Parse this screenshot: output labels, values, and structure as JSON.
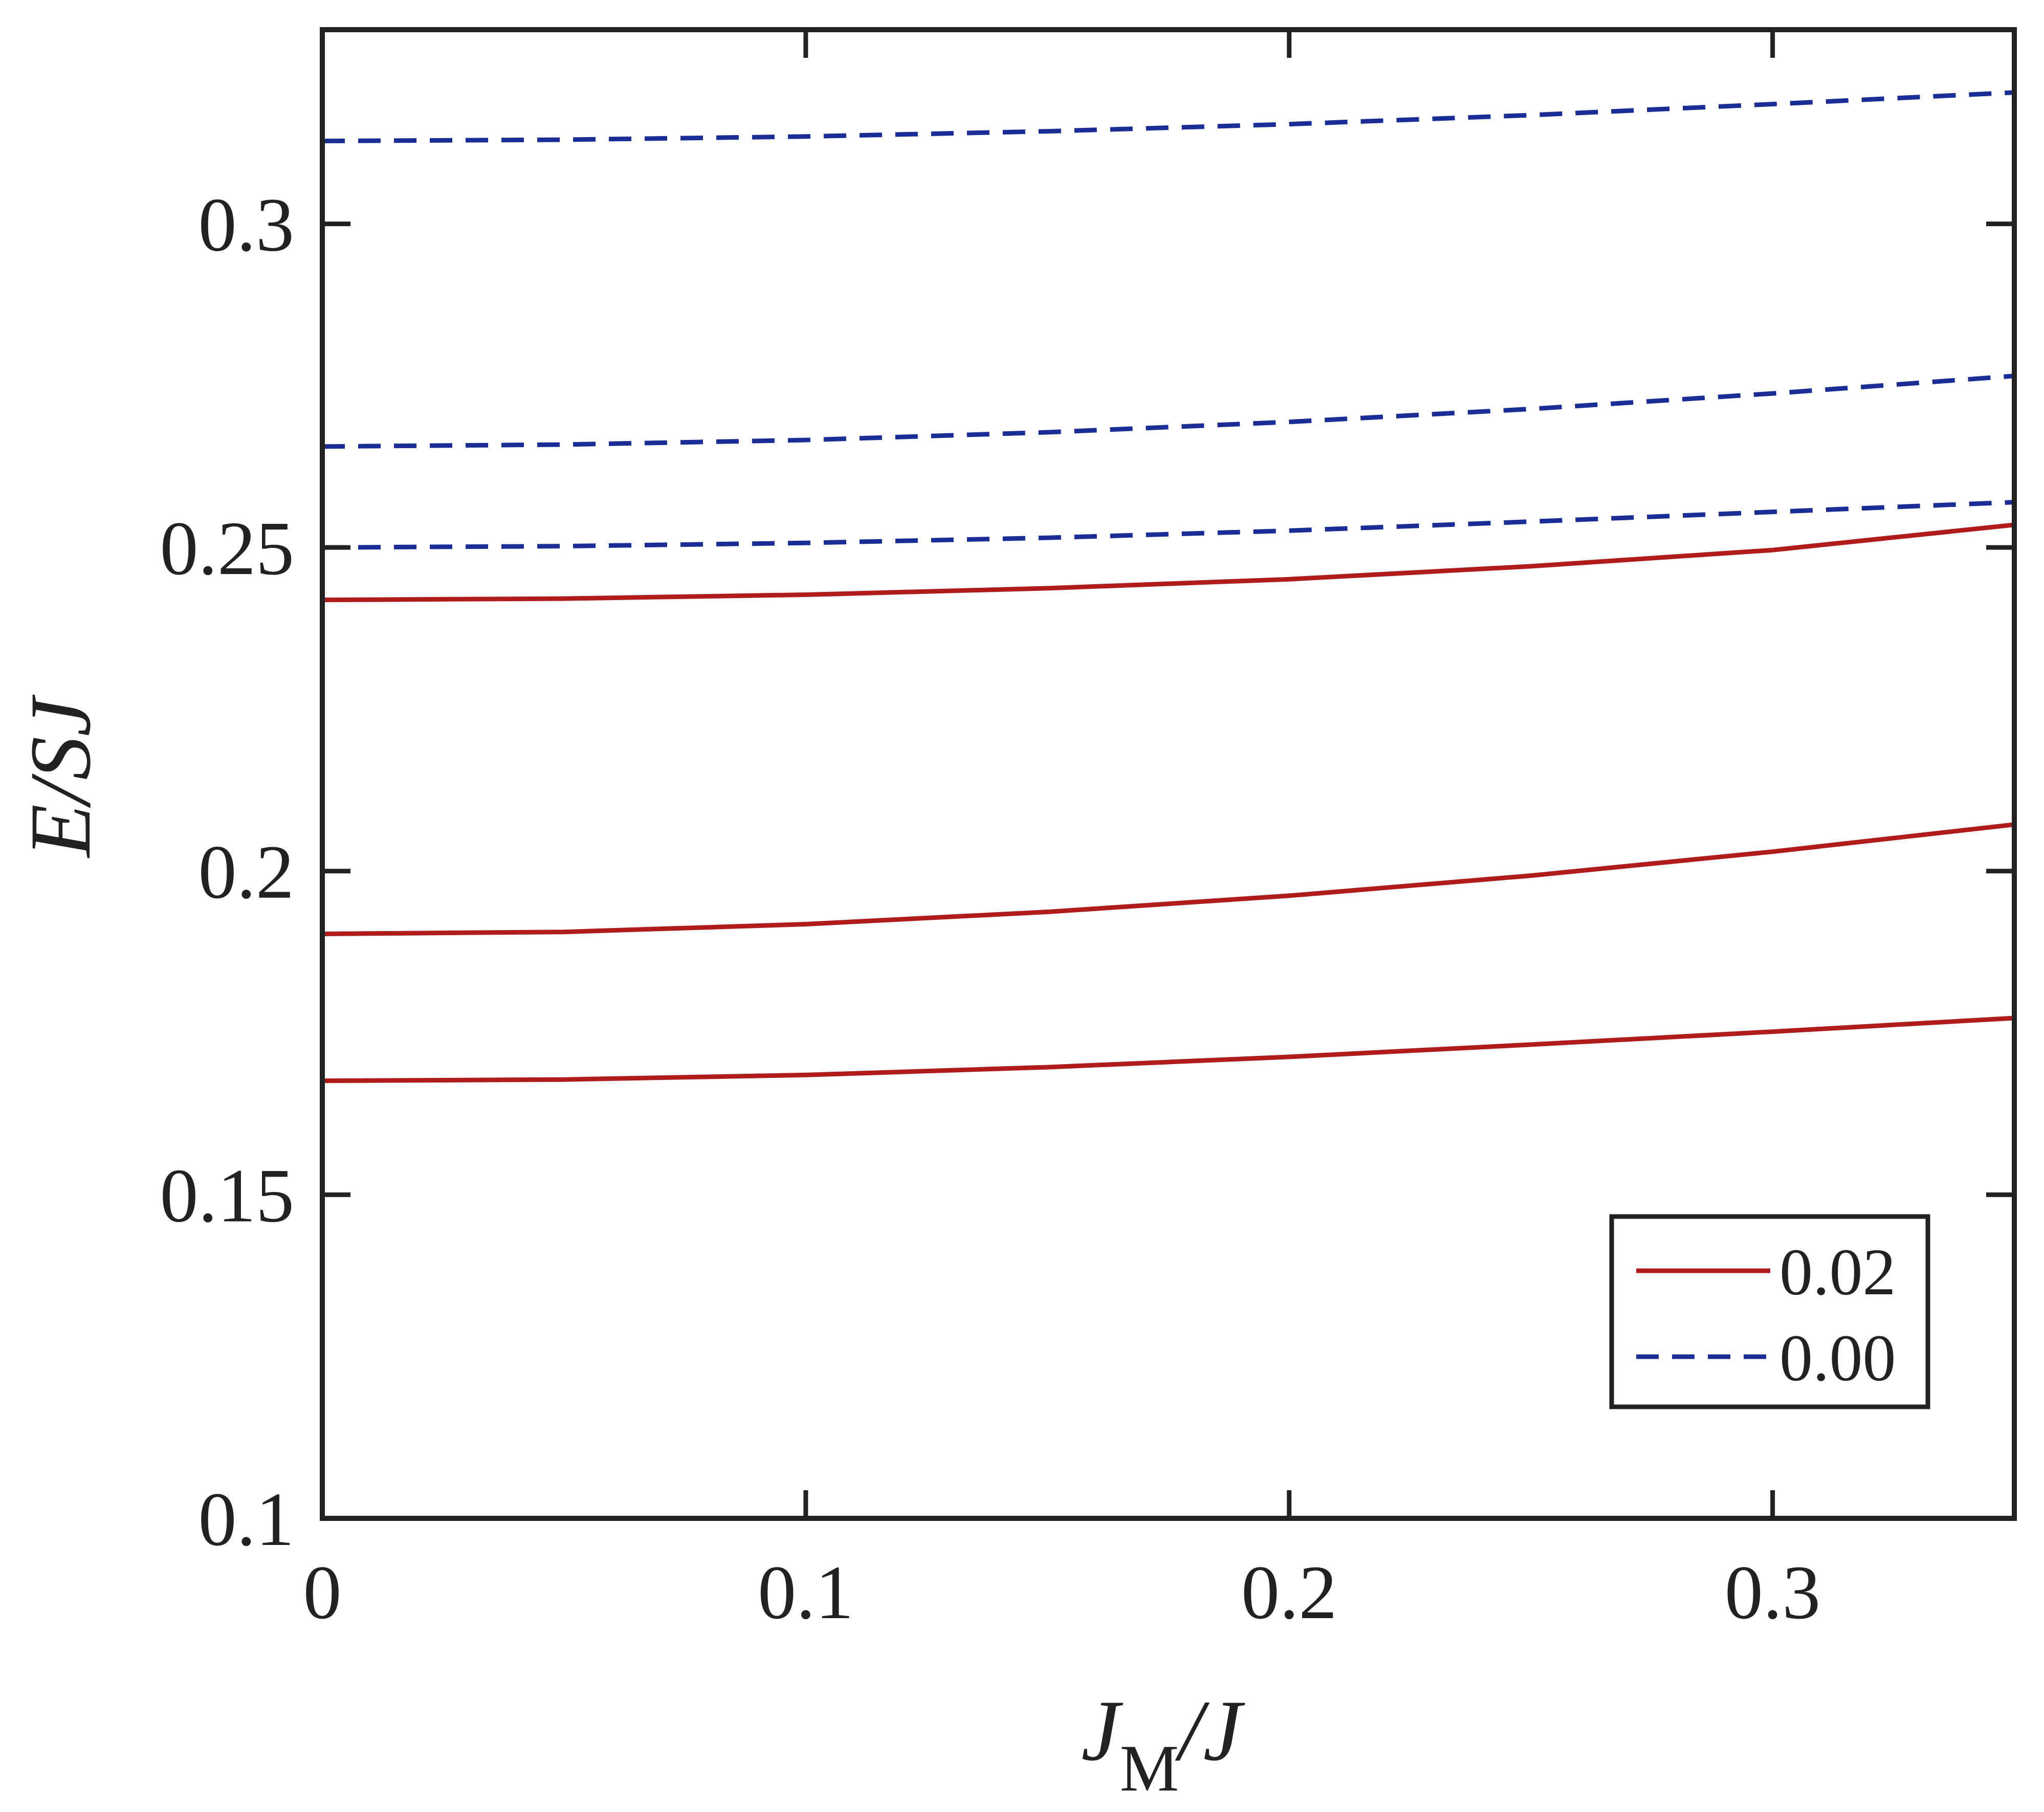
{
  "chart_data": {
    "type": "line",
    "title": "",
    "xlabel": {
      "main": "J",
      "sub": "M",
      "suffix": "/J"
    },
    "ylabel": "E/SJ",
    "xlim": [
      0,
      0.35
    ],
    "ylim": [
      0.1,
      0.33
    ],
    "xticks": [
      0,
      0.1,
      0.2,
      0.3
    ],
    "xtick_labels": [
      "0",
      "0.1",
      "0.2",
      "0.3"
    ],
    "yticks": [
      0.1,
      0.15,
      0.2,
      0.25,
      0.3
    ],
    "ytick_labels": [
      "0.1",
      "0.15",
      "0.2",
      "0.25",
      "0.3"
    ],
    "grid": false,
    "legend_position": "bottom-right",
    "x": [
      0,
      0.05,
      0.1,
      0.15,
      0.2,
      0.25,
      0.3,
      0.35
    ],
    "series": [
      {
        "name": "0.02",
        "legend": true,
        "values": [
          0.2419,
          0.2421,
          0.2427,
          0.2437,
          0.2451,
          0.2471,
          0.2496,
          0.2535
        ]
      },
      {
        "name": "0.02",
        "legend": false,
        "values": [
          0.1903,
          0.1906,
          0.1918,
          0.1937,
          0.1962,
          0.1993,
          0.203,
          0.2072
        ]
      },
      {
        "name": "0.02",
        "legend": false,
        "values": [
          0.1676,
          0.1678,
          0.1685,
          0.1697,
          0.1713,
          0.1732,
          0.1752,
          0.1773
        ]
      },
      {
        "name": "0.00",
        "legend": true,
        "values": [
          0.3128,
          0.313,
          0.3135,
          0.3143,
          0.3154,
          0.3168,
          0.3185,
          0.3203
        ]
      },
      {
        "name": "0.00",
        "legend": false,
        "values": [
          0.2656,
          0.2659,
          0.2666,
          0.2678,
          0.2694,
          0.2714,
          0.2738,
          0.2765
        ]
      },
      {
        "name": "0.00",
        "legend": false,
        "values": [
          0.25,
          0.2502,
          0.2507,
          0.2515,
          0.2526,
          0.254,
          0.2555,
          0.257
        ]
      }
    ],
    "series_styles": {
      "0.02": {
        "color": "#b01c1c",
        "dash": "solid"
      },
      "0.00": {
        "color": "#1a2d96",
        "dash": "dashed"
      }
    },
    "frame_color": "#222222"
  }
}
